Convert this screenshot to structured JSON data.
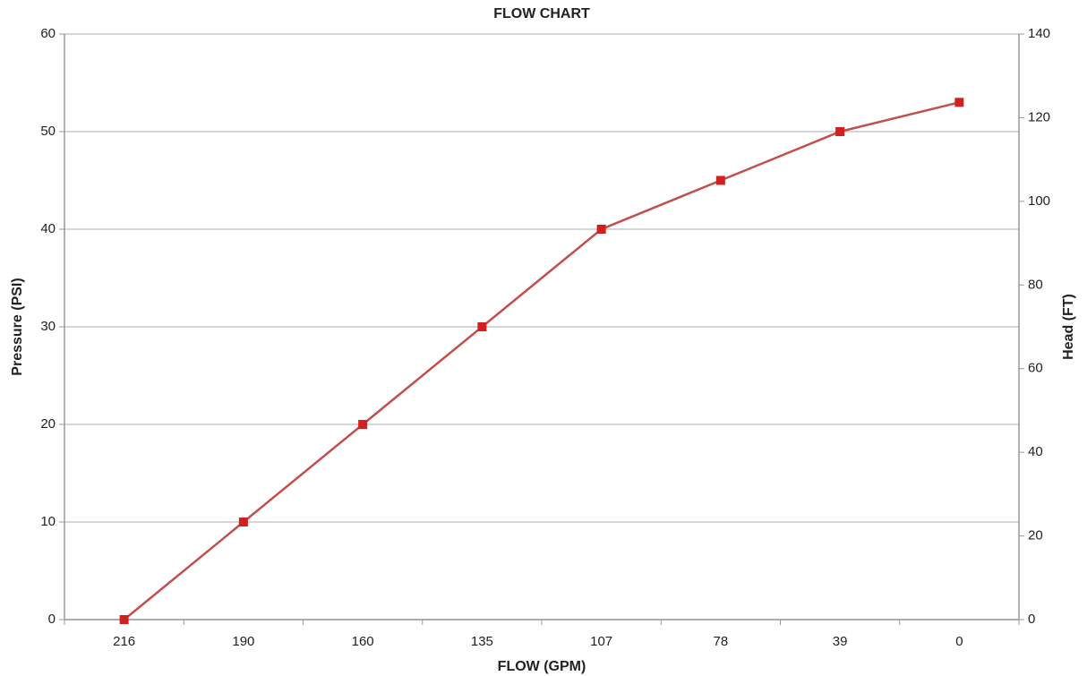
{
  "chart_data": {
    "type": "line",
    "title": "FLOW CHART",
    "x_label": "FLOW (GPM)",
    "y_label": "Pressure (PSI)",
    "y2_label": "Head (FT)",
    "categories": [
      "216",
      "190",
      "160",
      "135",
      "107",
      "78",
      "39",
      "0"
    ],
    "values": [
      0,
      10,
      20,
      30,
      40,
      45,
      50,
      53
    ],
    "color": "#c0504d",
    "marker_color": "#d41f1f",
    "ylim": [
      0,
      60
    ],
    "yticks": [
      0,
      10,
      20,
      30,
      40,
      50,
      60
    ],
    "y2lim": [
      0,
      140
    ],
    "y2ticks": [
      0,
      20,
      40,
      60,
      80,
      100,
      120,
      140
    ],
    "grid": true
  }
}
